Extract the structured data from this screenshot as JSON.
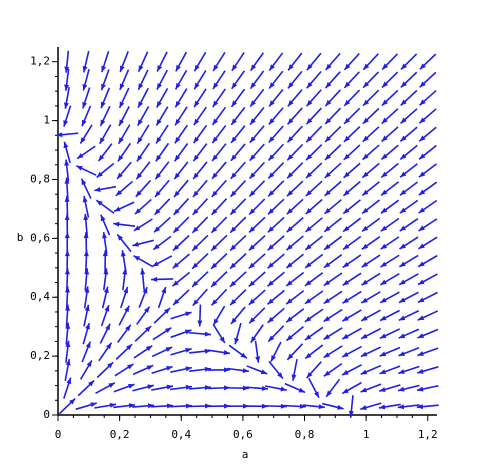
{
  "chart_data": {
    "type": "vector_field",
    "xlabel": "a",
    "ylabel": "b",
    "xlim": [
      0,
      1.23
    ],
    "ylim": [
      0,
      1.25
    ],
    "xticks": [
      0,
      {
        "value": 0.2,
        "label": "0,2"
      },
      {
        "value": 0.4,
        "label": "0,4"
      },
      {
        "value": 0.6,
        "label": "0,6"
      },
      {
        "value": 0.8,
        "label": "0,8"
      },
      1,
      {
        "value": 1.2,
        "label": "1,2"
      }
    ],
    "yticks": [
      0,
      {
        "value": 0.2,
        "label": "0,2"
      },
      {
        "value": 0.4,
        "label": "0,4"
      },
      {
        "value": 0.6,
        "label": "0,6"
      },
      {
        "value": 0.8,
        "label": "0,8"
      },
      1,
      {
        "value": 1.2,
        "label": "1,2"
      }
    ],
    "color": "#1f1fe6"
  }
}
